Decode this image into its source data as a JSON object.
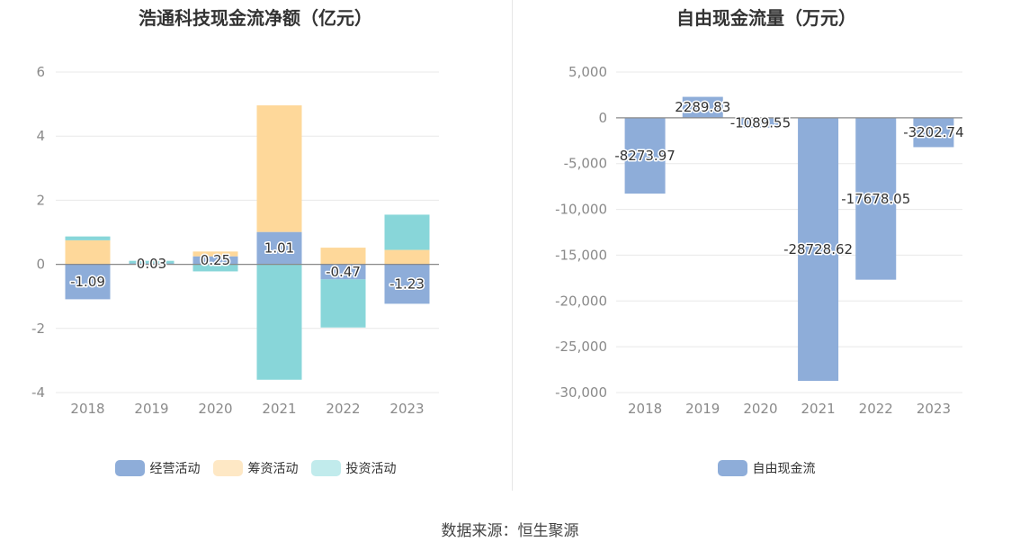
{
  "colors": {
    "operating": "#8eadd9",
    "financing": "#fed89a",
    "investing": "#88d6d9",
    "free_cash_flow": "#8eadd9",
    "grid": "#e8e8e8",
    "axis_text": "#8a8a8a"
  },
  "source": "数据来源：恒生聚源",
  "chart_data": [
    {
      "type": "bar",
      "stacked": true,
      "title": "浩通科技现金流净额（亿元）",
      "categories": [
        "2018",
        "2019",
        "2020",
        "2021",
        "2022",
        "2023"
      ],
      "ylim": [
        -4,
        6
      ],
      "yticks": [
        -4,
        -2,
        0,
        2,
        4,
        6
      ],
      "grid": true,
      "legend_position": "bottom",
      "series": [
        {
          "name": "经营活动",
          "values": [
            -1.09,
            0.03,
            0.25,
            1.01,
            -0.47,
            -1.23
          ],
          "labels": [
            "-1.09",
            "0.03",
            "0.25",
            "1.01",
            "-0.47",
            "-1.23"
          ]
        },
        {
          "name": "筹资活动",
          "values": [
            0.75,
            0.0,
            0.15,
            3.95,
            0.52,
            0.45
          ]
        },
        {
          "name": "投资活动",
          "values": [
            0.12,
            0.08,
            -0.22,
            -3.6,
            -1.5,
            1.1
          ]
        }
      ]
    },
    {
      "type": "bar",
      "title": "自由现金流量（万元）",
      "categories": [
        "2018",
        "2019",
        "2020",
        "2021",
        "2022",
        "2023"
      ],
      "ylim": [
        -30000,
        5000
      ],
      "yticks": [
        -30000,
        -25000,
        -20000,
        -15000,
        -10000,
        -5000,
        0,
        5000
      ],
      "ytick_labels": [
        "-30,000",
        "-25,000",
        "-20,000",
        "-15,000",
        "-10,000",
        "-5,000",
        "0",
        "5,000"
      ],
      "grid": true,
      "legend_position": "bottom",
      "series": [
        {
          "name": "自由现金流",
          "values": [
            -8273.97,
            2289.83,
            -1089.55,
            -28728.62,
            -17678.05,
            -3202.74
          ],
          "labels": [
            "-8273.97",
            "2289.83",
            "-1089.55",
            "-28728.62",
            "-17678.05",
            "-3202.74"
          ]
        }
      ]
    }
  ]
}
